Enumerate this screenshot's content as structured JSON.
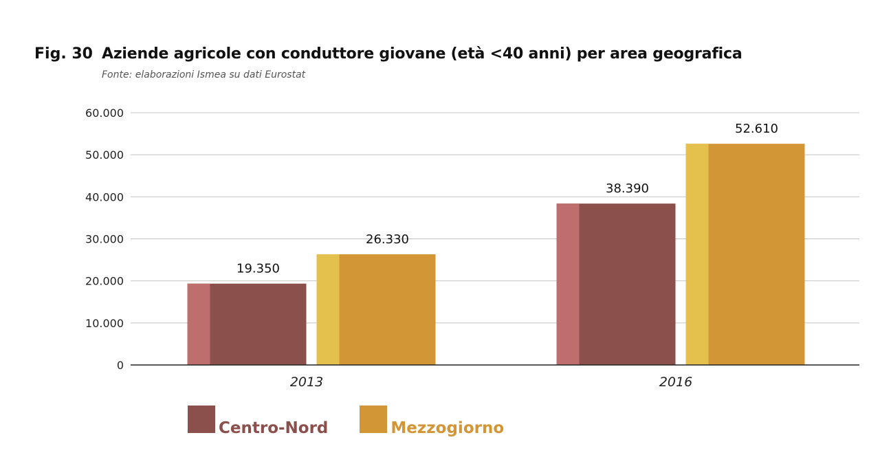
{
  "figure": {
    "number": "Fig. 30",
    "title": "Aziende agricole con conduttore giovane (età <40 anni) per area geografica",
    "source": "Fonte: elaborazioni Ismea su dati Eurostat"
  },
  "chart_data": {
    "type": "bar",
    "categories": [
      "2013",
      "2016"
    ],
    "series": [
      {
        "name": "Centro-Nord",
        "values": [
          19350,
          38390
        ],
        "value_labels": [
          "19.350",
          "38.390"
        ],
        "color": "#8b4f4c",
        "highlight": "#bd6e6d"
      },
      {
        "name": "Mezzogiorno",
        "values": [
          26330,
          52610
        ],
        "value_labels": [
          "26.330",
          "52.610"
        ],
        "color": "#d39637",
        "highlight": "#e4c04c"
      }
    ],
    "ylim": [
      0,
      60000
    ],
    "yticks": [
      0,
      10000,
      20000,
      30000,
      40000,
      50000,
      60000
    ],
    "ytick_labels": [
      "0",
      "10.000",
      "20.000",
      "30.000",
      "40.000",
      "50.000",
      "60.000"
    ],
    "grid": true,
    "legend_position": "bottom-left",
    "xlabel": "",
    "ylabel": ""
  }
}
